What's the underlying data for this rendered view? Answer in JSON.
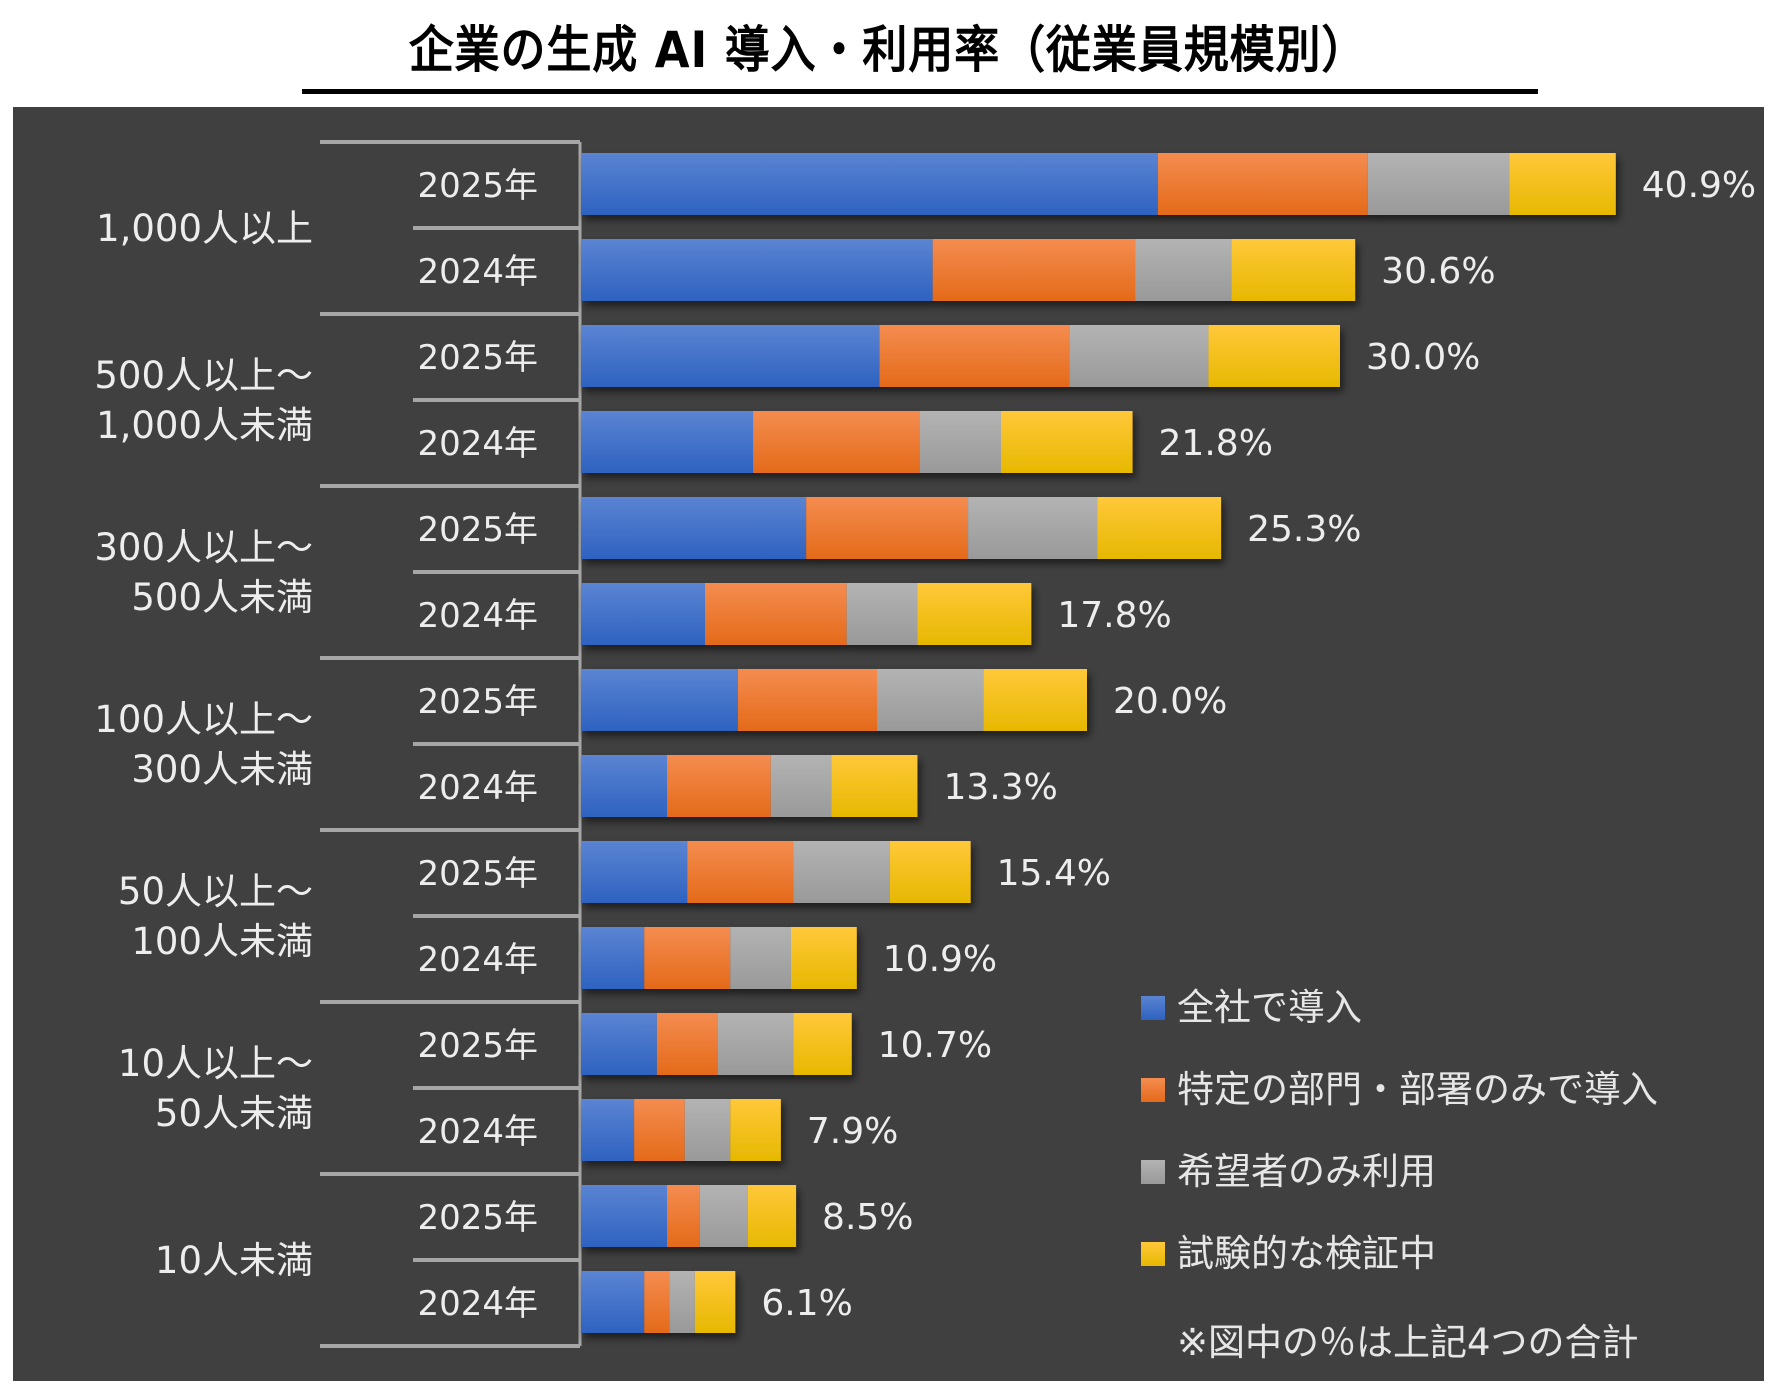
{
  "chart_data": {
    "type": "bar",
    "orientation": "horizontal",
    "stacked": true,
    "title": "企業の生成 AI 導入・利用率（従業員規模別）",
    "xlabel": "",
    "ylabel": "",
    "xlim": [
      0,
      45
    ],
    "grid": false,
    "legend_position": "bottom-right",
    "note": "※図中の％は上記4つの合計",
    "groups": [
      {
        "label": "1,000人以上",
        "lines": [
          "1,000人以上"
        ]
      },
      {
        "label": "500人以上～1,000人未満",
        "lines": [
          "500人以上～",
          "1,000人未満"
        ]
      },
      {
        "label": "300人以上～500人未満",
        "lines": [
          "300人以上～",
          "500人未満"
        ]
      },
      {
        "label": "100人以上～300人未満",
        "lines": [
          "100人以上～",
          "300人未満"
        ]
      },
      {
        "label": "50人以上～100人未満",
        "lines": [
          "50人以上～",
          "100人未満"
        ]
      },
      {
        "label": "10人以上～50人未満",
        "lines": [
          "10人以上～",
          "50人未満"
        ]
      },
      {
        "label": "10人未満",
        "lines": [
          "10人未満"
        ]
      }
    ],
    "categories": [
      {
        "group": 0,
        "year": "2025年",
        "total_label": "40.9%"
      },
      {
        "group": 0,
        "year": "2024年",
        "total_label": "30.6%"
      },
      {
        "group": 1,
        "year": "2025年",
        "total_label": "30.0%"
      },
      {
        "group": 1,
        "year": "2024年",
        "total_label": "21.8%"
      },
      {
        "group": 2,
        "year": "2025年",
        "total_label": "25.3%"
      },
      {
        "group": 2,
        "year": "2024年",
        "total_label": "17.8%"
      },
      {
        "group": 3,
        "year": "2025年",
        "total_label": "20.0%"
      },
      {
        "group": 3,
        "year": "2024年",
        "total_label": "13.3%"
      },
      {
        "group": 4,
        "year": "2025年",
        "total_label": "15.4%"
      },
      {
        "group": 4,
        "year": "2024年",
        "total_label": "10.9%"
      },
      {
        "group": 5,
        "year": "2025年",
        "total_label": "10.7%"
      },
      {
        "group": 5,
        "year": "2024年",
        "total_label": "7.9%"
      },
      {
        "group": 6,
        "year": "2025年",
        "total_label": "8.5%"
      },
      {
        "group": 6,
        "year": "2024年",
        "total_label": "6.1%"
      }
    ],
    "totals": [
      40.9,
      30.6,
      30.0,
      21.8,
      25.3,
      17.8,
      20.0,
      13.3,
      15.4,
      10.9,
      10.7,
      7.9,
      8.5,
      6.1
    ],
    "series": [
      {
        "name": "全社で導入",
        "color": "#4472c4",
        "values": [
          22.8,
          13.9,
          11.8,
          6.8,
          8.9,
          4.9,
          6.2,
          3.4,
          4.2,
          2.5,
          3.0,
          2.1,
          3.4,
          2.5
        ]
      },
      {
        "name": "特定の部門・部署のみで導入",
        "color": "#ed7d31",
        "values": [
          8.3,
          8.0,
          7.5,
          6.6,
          6.4,
          5.6,
          5.5,
          4.1,
          4.2,
          3.4,
          2.4,
          2.0,
          1.3,
          1.0
        ]
      },
      {
        "name": "希望者のみ利用",
        "color": "#a5a5a5",
        "values": [
          5.6,
          3.8,
          5.5,
          3.2,
          5.1,
          2.8,
          4.2,
          2.4,
          3.8,
          2.4,
          3.0,
          1.8,
          1.9,
          1.0
        ]
      },
      {
        "name": "試験的な検証中",
        "color": "#ffc000",
        "values": [
          4.2,
          4.9,
          5.2,
          5.2,
          4.9,
          4.5,
          4.1,
          3.4,
          3.2,
          2.6,
          2.3,
          2.0,
          1.9,
          1.6
        ]
      }
    ]
  }
}
